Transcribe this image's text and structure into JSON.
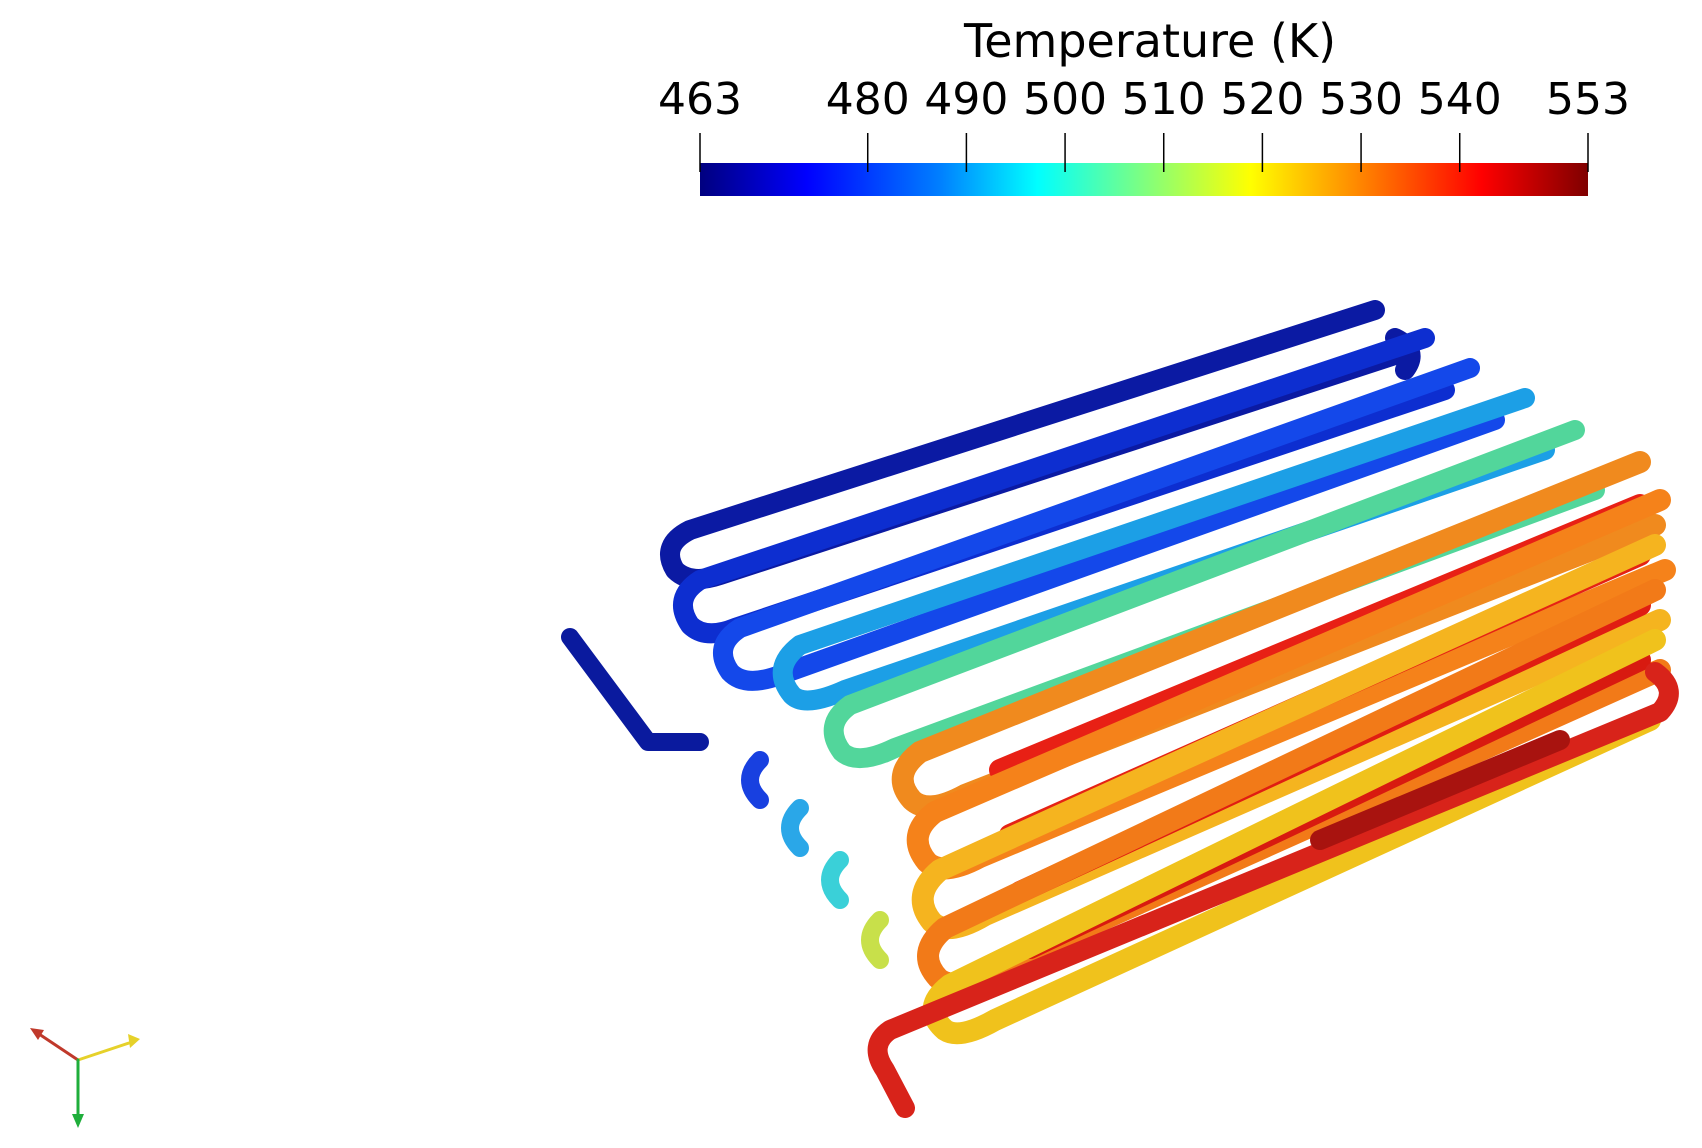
{
  "legend": {
    "title": "Temperature (K)",
    "min": 463,
    "max": 553,
    "ticks": [
      {
        "label": "463",
        "value": 463
      },
      {
        "label": "480",
        "value": 480
      },
      {
        "label": "490",
        "value": 490
      },
      {
        "label": "500",
        "value": 500
      },
      {
        "label": "510",
        "value": 510
      },
      {
        "label": "520",
        "value": 520
      },
      {
        "label": "530",
        "value": 530
      },
      {
        "label": "540",
        "value": 540
      },
      {
        "label": "553",
        "value": 553
      }
    ],
    "colormap": [
      "#00007f",
      "#0000ff",
      "#007fff",
      "#00ffff",
      "#7fff7f",
      "#ffff00",
      "#ff7f00",
      "#ff0000",
      "#7f0000"
    ]
  },
  "axes_triad": {
    "x_color": "#c0392b",
    "y_color": "#e6d12a",
    "z_color": "#1fae3b"
  }
}
